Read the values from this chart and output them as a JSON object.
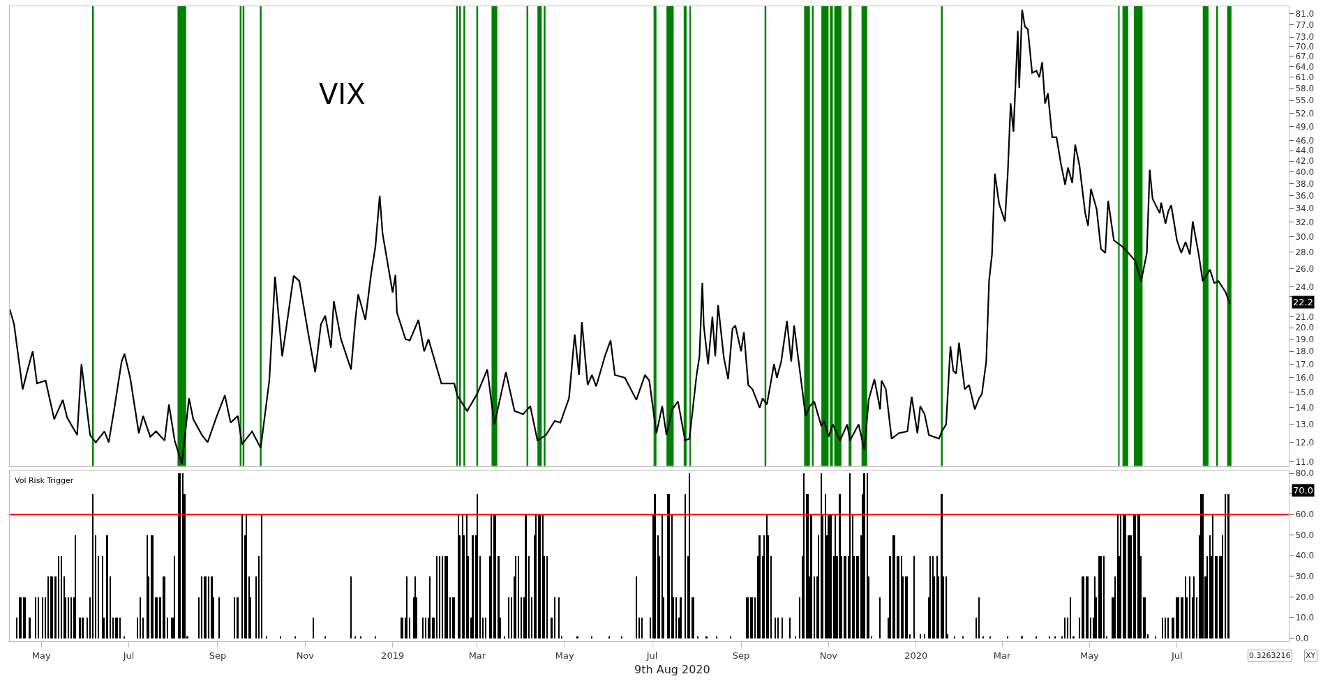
{
  "chart_data": [
    {
      "type": "line",
      "title": "VIX",
      "color": "#000000",
      "log": true,
      "tick_labels": "y",
      "xlim": [
        "2018-04-09",
        "2020-09-17"
      ],
      "ylim": [
        10.8,
        83.7
      ],
      "yticks": [
        {
          "value": 11,
          "label": "11.0"
        },
        {
          "value": 12,
          "label": "12.0"
        },
        {
          "value": 13,
          "label": "13.0"
        },
        {
          "value": 14,
          "label": "14.0"
        },
        {
          "value": 15,
          "label": "15.0"
        },
        {
          "value": 16,
          "label": "16.0"
        },
        {
          "value": 17,
          "label": "17.0"
        },
        {
          "value": 18,
          "label": "18.0"
        },
        {
          "value": 19,
          "label": "19.0"
        },
        {
          "value": 20,
          "label": "20.0"
        },
        {
          "value": 21,
          "label": "21.0"
        },
        {
          "value": 23,
          "label": null
        },
        {
          "value": 24,
          "label": "24.0"
        },
        {
          "value": 26,
          "label": "26.0"
        },
        {
          "value": 28,
          "label": "28.0"
        },
        {
          "value": 30,
          "label": "30.0"
        },
        {
          "value": 32,
          "label": "32.0"
        },
        {
          "value": 34,
          "label": "34.0"
        },
        {
          "value": 36,
          "label": "36.0"
        },
        {
          "value": 38,
          "label": "38.0"
        },
        {
          "value": 40,
          "label": "40.0"
        },
        {
          "value": 42,
          "label": "42.0"
        },
        {
          "value": 44,
          "label": "44.0"
        },
        {
          "value": 46,
          "label": "46.0"
        },
        {
          "value": 49,
          "label": "49.0"
        },
        {
          "value": 52,
          "label": "52.0"
        },
        {
          "value": 55,
          "label": "55.0"
        },
        {
          "value": 58,
          "label": "58.0"
        },
        {
          "value": 61,
          "label": "61.0"
        },
        {
          "value": 64,
          "label": "64.0"
        },
        {
          "value": 67,
          "label": "67.0"
        },
        {
          "value": 70,
          "label": "70.0"
        },
        {
          "value": 73,
          "label": "73.0"
        },
        {
          "value": 77,
          "label": "77.0"
        },
        {
          "value": 81,
          "label": "81.0"
        }
      ],
      "x": [
        "2018-04-09",
        "2018-04-12",
        "2018-04-18",
        "2018-04-22",
        "2018-04-25",
        "2018-04-28",
        "2018-05-04",
        "2018-05-10",
        "2018-05-16",
        "2018-05-19",
        "2018-05-26",
        "2018-05-29",
        "2018-06-04",
        "2018-06-08",
        "2018-06-14",
        "2018-06-17",
        "2018-06-21",
        "2018-06-26",
        "2018-06-28",
        "2018-07-02",
        "2018-07-08",
        "2018-07-11",
        "2018-07-16",
        "2018-07-20",
        "2018-07-26",
        "2018-07-29",
        "2018-08-02",
        "2018-08-07",
        "2018-08-12",
        "2018-08-15",
        "2018-08-21",
        "2018-08-25",
        "2018-08-31",
        "2018-09-06",
        "2018-09-10",
        "2018-09-15",
        "2018-09-18",
        "2018-09-25",
        "2018-10-01",
        "2018-10-07",
        "2018-10-11",
        "2018-10-16",
        "2018-10-24",
        "2018-10-28",
        "2018-11-03",
        "2018-11-08",
        "2018-11-12",
        "2018-11-15",
        "2018-11-19",
        "2018-11-21",
        "2018-11-26",
        "2018-12-03",
        "2018-12-06",
        "2018-12-08",
        "2018-12-13",
        "2018-12-17",
        "2018-12-20",
        "2018-12-23",
        "2018-12-25",
        "2019-01-01",
        "2019-01-03",
        "2019-01-04",
        "2019-01-10",
        "2019-01-13",
        "2019-01-19",
        "2019-01-23",
        "2019-01-26",
        "2019-02-04",
        "2019-02-13",
        "2019-02-15",
        "2019-02-22",
        "2019-03-01",
        "2019-03-08",
        "2019-03-13",
        "2019-03-21",
        "2019-03-27",
        "2019-04-02",
        "2019-04-07",
        "2019-04-12",
        "2019-04-18",
        "2019-04-24",
        "2019-04-28",
        "2019-05-04",
        "2019-05-08",
        "2019-05-11",
        "2019-05-13",
        "2019-05-17",
        "2019-05-20",
        "2019-05-23",
        "2019-05-29",
        "2019-06-02",
        "2019-06-05",
        "2019-06-12",
        "2019-06-20",
        "2019-06-26",
        "2019-06-29",
        "2019-07-04",
        "2019-07-08",
        "2019-07-11",
        "2019-07-15",
        "2019-07-19",
        "2019-07-24",
        "2019-07-27",
        "2019-08-01",
        "2019-08-03",
        "2019-08-05",
        "2019-08-06",
        "2019-08-09",
        "2019-08-12",
        "2019-08-14",
        "2019-08-16",
        "2019-08-20",
        "2019-08-23",
        "2019-08-26",
        "2019-08-28",
        "2019-09-01",
        "2019-09-03",
        "2019-09-06",
        "2019-09-09",
        "2019-09-14",
        "2019-09-16",
        "2019-09-19",
        "2019-09-24",
        "2019-09-26",
        "2019-09-29",
        "2019-10-03",
        "2019-10-06",
        "2019-10-08",
        "2019-10-12",
        "2019-10-16",
        "2019-10-19",
        "2019-10-22",
        "2019-10-27",
        "2019-10-29",
        "2019-11-01",
        "2019-11-04",
        "2019-11-09",
        "2019-11-14",
        "2019-11-16",
        "2019-11-22",
        "2019-11-26",
        "2019-11-29",
        "2019-12-03",
        "2019-12-07",
        "2019-12-08",
        "2019-12-11",
        "2019-12-15",
        "2019-12-20",
        "2019-12-26",
        "2019-12-29",
        "2020-01-02",
        "2020-01-04",
        "2020-01-07",
        "2020-01-10",
        "2020-01-17",
        "2020-01-19",
        "2020-01-22",
        "2020-01-25",
        "2020-01-27",
        "2020-01-29",
        "2020-01-31",
        "2020-02-04",
        "2020-02-07",
        "2020-02-11",
        "2020-02-14",
        "2020-02-16",
        "2020-02-19",
        "2020-02-21",
        "2020-02-23",
        "2020-02-25",
        "2020-02-28",
        "2020-03-03",
        "2020-03-05",
        "2020-03-07",
        "2020-03-09",
        "2020-03-12",
        "2020-03-13",
        "2020-03-15",
        "2020-03-17",
        "2020-03-19",
        "2020-03-22",
        "2020-03-25",
        "2020-03-27",
        "2020-03-29",
        "2020-03-31",
        "2020-04-02",
        "2020-04-05",
        "2020-04-08",
        "2020-04-11",
        "2020-04-14",
        "2020-04-16",
        "2020-04-19",
        "2020-04-21",
        "2020-04-24",
        "2020-04-28",
        "2020-04-30",
        "2020-05-02",
        "2020-05-06",
        "2020-05-09",
        "2020-05-12",
        "2020-05-14",
        "2020-05-18",
        "2020-05-24",
        "2020-05-28",
        "2020-06-02",
        "2020-06-06",
        "2020-06-10",
        "2020-06-12",
        "2020-06-14",
        "2020-06-19",
        "2020-06-20",
        "2020-06-23",
        "2020-06-25",
        "2020-06-27",
        "2020-07-01",
        "2020-07-04",
        "2020-07-07",
        "2020-07-10",
        "2020-07-12",
        "2020-07-16",
        "2020-07-19",
        "2020-07-24",
        "2020-07-27",
        "2020-07-30",
        "2020-08-04",
        "2020-08-07"
      ],
      "values": [
        21.7,
        20.3,
        15.2,
        16.8,
        18.0,
        15.6,
        15.8,
        13.3,
        14.5,
        13.4,
        12.4,
        17.0,
        12.4,
        12.0,
        12.6,
        12.0,
        14.0,
        17.2,
        17.8,
        16.0,
        12.5,
        13.5,
        12.3,
        12.6,
        12.1,
        14.2,
        12.1,
        10.9,
        14.6,
        13.3,
        12.4,
        12.0,
        13.4,
        14.8,
        13.1,
        13.5,
        11.9,
        12.6,
        11.7,
        15.8,
        25.1,
        17.6,
        25.2,
        24.6,
        19.6,
        16.4,
        20.3,
        21.1,
        18.3,
        22.5,
        19.0,
        16.6,
        20.7,
        23.2,
        20.7,
        25.4,
        28.7,
        36.0,
        30.4,
        23.4,
        25.3,
        21.4,
        19.0,
        18.9,
        20.7,
        18.0,
        19.0,
        15.6,
        15.6,
        14.8,
        13.8,
        14.9,
        16.6,
        13.0,
        16.4,
        13.8,
        13.6,
        14.1,
        12.1,
        12.4,
        13.2,
        13.1,
        14.6,
        19.4,
        16.2,
        20.5,
        15.5,
        16.2,
        15.4,
        17.6,
        18.9,
        16.2,
        16.0,
        14.5,
        16.2,
        15.8,
        12.5,
        14.1,
        12.4,
        13.9,
        14.4,
        12.1,
        12.2,
        16.2,
        17.6,
        24.4,
        20.2,
        17.0,
        21.0,
        17.6,
        22.1,
        17.5,
        15.9,
        19.9,
        20.2,
        18.0,
        19.6,
        15.5,
        15.2,
        14.0,
        14.6,
        14.2,
        17.0,
        16.0,
        17.2,
        20.6,
        17.2,
        20.2,
        16.5,
        13.5,
        14.1,
        14.4,
        12.9,
        13.2,
        12.3,
        13.0,
        12.1,
        13.0,
        12.1,
        13.0,
        11.6,
        14.5,
        15.9,
        13.9,
        15.8,
        15.2,
        12.2,
        12.5,
        12.6,
        14.7,
        12.5,
        14.1,
        13.6,
        12.4,
        12.2,
        12.6,
        13.0,
        18.4,
        16.5,
        16.3,
        18.7,
        15.2,
        15.5,
        13.9,
        14.6,
        14.9,
        17.2,
        24.7,
        27.7,
        39.7,
        34.7,
        32.1,
        39.7,
        54.3,
        47.9,
        75.0,
        58.2,
        82.4,
        76.4,
        75.6,
        62.2,
        62.8,
        61.0,
        65.2,
        54.3,
        56.8,
        46.7,
        46.7,
        41.6,
        37.8,
        40.8,
        38.1,
        45.2,
        41.2,
        33.3,
        31.5,
        37.1,
        33.9,
        28.4,
        27.9,
        35.2,
        29.5,
        28.7,
        27.9,
        26.9,
        24.6,
        27.9,
        40.4,
        35.5,
        33.3,
        34.9,
        31.8,
        33.6,
        34.5,
        29.5,
        27.9,
        29.3,
        27.7,
        32.1,
        27.9,
        24.6,
        25.9,
        24.4,
        24.6,
        23.4,
        22.2
      ],
      "ref_lines": [
        {
          "axis": "x",
          "value": "2018-06-06",
          "color": "#008000"
        },
        {
          "axis": "x",
          "value": "2018-09-17",
          "color": "#008000"
        },
        {
          "axis": "x",
          "value": "2018-09-19",
          "color": "#008000"
        },
        {
          "axis": "x",
          "value": "2018-10-01",
          "color": "#008000"
        },
        {
          "axis": "x",
          "value": "2019-02-15",
          "color": "#008000"
        },
        {
          "axis": "x",
          "value": "2019-02-17",
          "color": "#008000"
        },
        {
          "axis": "x",
          "value": "2019-02-20",
          "color": "#008000"
        },
        {
          "axis": "x",
          "value": "2019-03-01",
          "color": "#008000"
        },
        {
          "axis": "x",
          "value": "2019-04-05",
          "color": "#008000"
        },
        {
          "axis": "x",
          "value": "2019-04-17",
          "color": "#008000"
        },
        {
          "axis": "x",
          "value": "2019-09-18",
          "color": "#008000"
        },
        {
          "axis": "x",
          "value": "2019-10-21",
          "color": "#008000"
        },
        {
          "axis": "x",
          "value": "2020-01-19",
          "color": "#008000"
        },
        {
          "axis": "x",
          "value": "2020-07-29",
          "color": "#008000"
        }
      ],
      "bands": [
        {
          "axis": "x",
          "from": "2018-08-04",
          "to": "2018-08-10",
          "color": "#008000"
        },
        {
          "axis": "x",
          "from": "2019-03-11",
          "to": "2019-03-15",
          "color": "#008000"
        },
        {
          "axis": "x",
          "from": "2019-04-12",
          "to": "2019-04-15",
          "color": "#008000"
        },
        {
          "axis": "x",
          "from": "2019-07-02",
          "to": "2019-07-04",
          "color": "#008000"
        },
        {
          "axis": "x",
          "from": "2019-07-11",
          "to": "2019-07-16",
          "color": "#008000"
        },
        {
          "axis": "x",
          "from": "2019-07-23",
          "to": "2019-07-25",
          "color": "#008000"
        },
        {
          "axis": "x",
          "from": "2019-07-27",
          "to": "2019-07-28",
          "color": "#008000"
        },
        {
          "axis": "x",
          "from": "2019-10-15",
          "to": "2019-10-19",
          "color": "#008000"
        },
        {
          "axis": "x",
          "from": "2019-10-27",
          "to": "2019-11-01",
          "color": "#008000"
        },
        {
          "axis": "x",
          "from": "2019-11-02",
          "to": "2019-11-04",
          "color": "#008000"
        },
        {
          "axis": "x",
          "from": "2019-11-05",
          "to": "2019-11-10",
          "color": "#008000"
        },
        {
          "axis": "x",
          "from": "2019-11-15",
          "to": "2019-11-17",
          "color": "#008000"
        },
        {
          "axis": "x",
          "from": "2019-11-24",
          "to": "2019-11-28",
          "color": "#008000"
        },
        {
          "axis": "x",
          "from": "2020-05-21",
          "to": "2020-05-22",
          "color": "#008000"
        },
        {
          "axis": "x",
          "from": "2020-05-24",
          "to": "2020-05-28",
          "color": "#008000"
        },
        {
          "axis": "x",
          "from": "2020-06-01",
          "to": "2020-06-07",
          "color": "#008000"
        },
        {
          "axis": "x",
          "from": "2020-07-19",
          "to": "2020-07-23",
          "color": "#008000"
        },
        {
          "axis": "x",
          "from": "2020-08-05",
          "to": "2020-08-08",
          "color": "#008000"
        }
      ],
      "annotations": [
        "22.2"
      ]
    },
    {
      "type": "bar",
      "title": "Vol Risk Trigger",
      "color": "#000000",
      "xlim": [
        "2018-04-09",
        "2020-09-17"
      ],
      "ylim": [
        -1.5,
        81.5
      ],
      "yticks": [
        {
          "value": 0,
          "label": "0.0"
        },
        {
          "value": 10,
          "label": "10.0"
        },
        {
          "value": 20,
          "label": "20.0"
        },
        {
          "value": 30,
          "label": "30.0"
        },
        {
          "value": 40,
          "label": "40.0"
        },
        {
          "value": 50,
          "label": "50.0"
        },
        {
          "value": 60,
          "label": "60.0"
        },
        {
          "value": 70,
          "label": null
        },
        {
          "value": 80,
          "label": "80.0"
        }
      ],
      "xticks": [
        {
          "value": "2018-05-01",
          "label": "May"
        },
        {
          "value": "2018-07-01",
          "label": "Jul"
        },
        {
          "value": "2018-09-01",
          "label": "Sep"
        },
        {
          "value": "2018-11-01",
          "label": "Nov"
        },
        {
          "value": "2019-01-01",
          "label": "2019"
        },
        {
          "value": "2019-03-01",
          "label": "Mar"
        },
        {
          "value": "2019-05-01",
          "label": "May"
        },
        {
          "value": "2019-07-01",
          "label": "Jul"
        },
        {
          "value": "2019-09-01",
          "label": "Sep"
        },
        {
          "value": "2019-11-01",
          "label": "Nov"
        },
        {
          "value": "2020-01-01",
          "label": "2020"
        },
        {
          "value": "2020-03-01",
          "label": "Mar"
        },
        {
          "value": "2020-05-01",
          "label": "May"
        },
        {
          "value": "2020-07-01",
          "label": "Jul"
        }
      ],
      "x": [
        "2018-04-14",
        "2018-04-16",
        "2018-04-17",
        "2018-04-19",
        "2018-04-20",
        "2018-04-23",
        "2018-04-27",
        "2018-04-29",
        "2018-05-02",
        "2018-05-04",
        "2018-05-06",
        "2018-05-08",
        "2018-05-09",
        "2018-05-11",
        "2018-05-13",
        "2018-05-15",
        "2018-05-17",
        "2018-05-18",
        "2018-05-20",
        "2018-05-22",
        "2018-05-24",
        "2018-05-25",
        "2018-05-28",
        "2018-05-30",
        "2018-06-02",
        "2018-06-04",
        "2018-06-06",
        "2018-06-08",
        "2018-06-10",
        "2018-06-13",
        "2018-06-14",
        "2018-06-16",
        "2018-06-18",
        "2018-06-20",
        "2018-06-22",
        "2018-06-23",
        "2018-06-25",
        "2018-06-28",
        "2018-07-07",
        "2018-07-09",
        "2018-07-11",
        "2018-07-14",
        "2018-07-15",
        "2018-07-17",
        "2018-07-18",
        "2018-07-20",
        "2018-07-21",
        "2018-07-23",
        "2018-07-25",
        "2018-07-26",
        "2018-07-28",
        "2018-07-31",
        "2018-08-01",
        "2018-08-02",
        "2018-08-05",
        "2018-08-06",
        "2018-08-08",
        "2018-08-09",
        "2018-08-11",
        "2018-08-19",
        "2018-08-21",
        "2018-08-23",
        "2018-08-24",
        "2018-08-26",
        "2018-08-28",
        "2018-08-29",
        "2018-09-02",
        "2018-09-13",
        "2018-09-15",
        "2018-09-18",
        "2018-09-20",
        "2018-09-21",
        "2018-09-23",
        "2018-09-24",
        "2018-09-28",
        "2018-09-30",
        "2018-10-02",
        "2018-10-05",
        "2018-10-15",
        "2018-10-25",
        "2018-11-07",
        "2018-11-15",
        "2018-12-03",
        "2018-12-06",
        "2018-12-10",
        "2018-12-20",
        "2019-01-07",
        "2019-01-08",
        "2019-01-10",
        "2019-01-11",
        "2019-01-13",
        "2019-01-16",
        "2019-01-17",
        "2019-01-18",
        "2019-01-22",
        "2019-01-24",
        "2019-01-26",
        "2019-01-27",
        "2019-01-29",
        "2019-01-30",
        "2019-02-01",
        "2019-02-03",
        "2019-02-05",
        "2019-02-07",
        "2019-02-08",
        "2019-02-10",
        "2019-02-12",
        "2019-02-13",
        "2019-02-16",
        "2019-02-17",
        "2019-02-19",
        "2019-02-20",
        "2019-02-22",
        "2019-02-23",
        "2019-02-25",
        "2019-02-26",
        "2019-02-28",
        "2019-03-01",
        "2019-03-03",
        "2019-03-05",
        "2019-03-07",
        "2019-03-10",
        "2019-03-11",
        "2019-03-13",
        "2019-03-14",
        "2019-03-16",
        "2019-03-17",
        "2019-03-20",
        "2019-03-23",
        "2019-03-25",
        "2019-03-27",
        "2019-03-28",
        "2019-03-30",
        "2019-04-01",
        "2019-04-03",
        "2019-04-04",
        "2019-04-06",
        "2019-04-08",
        "2019-04-10",
        "2019-04-11",
        "2019-04-13",
        "2019-04-14",
        "2019-04-16",
        "2019-04-17",
        "2019-04-19",
        "2019-04-22",
        "2019-04-24",
        "2019-04-27",
        "2019-04-29",
        "2019-05-10",
        "2019-05-20",
        "2019-06-01",
        "2019-06-10",
        "2019-06-20",
        "2019-06-22",
        "2019-06-24",
        "2019-06-30",
        "2019-07-02",
        "2019-07-03",
        "2019-07-05",
        "2019-07-06",
        "2019-07-08",
        "2019-07-09",
        "2019-07-12",
        "2019-07-13",
        "2019-07-15",
        "2019-07-16",
        "2019-07-18",
        "2019-07-20",
        "2019-07-21",
        "2019-07-24",
        "2019-07-26",
        "2019-07-27",
        "2019-07-29",
        "2019-07-30",
        "2019-08-02",
        "2019-08-08",
        "2019-08-15",
        "2019-08-25",
        "2019-09-05",
        "2019-09-06",
        "2019-09-08",
        "2019-09-09",
        "2019-09-11",
        "2019-09-13",
        "2019-09-14",
        "2019-09-16",
        "2019-09-17",
        "2019-09-19",
        "2019-09-20",
        "2019-09-22",
        "2019-09-25",
        "2019-09-27",
        "2019-09-30",
        "2019-10-05",
        "2019-10-09",
        "2019-10-12",
        "2019-10-14",
        "2019-10-15",
        "2019-10-17",
        "2019-10-18",
        "2019-10-19",
        "2019-10-20",
        "2019-10-22",
        "2019-10-24",
        "2019-10-25",
        "2019-10-27",
        "2019-10-28",
        "2019-10-30",
        "2019-10-31",
        "2019-11-01",
        "2019-11-02",
        "2019-11-03",
        "2019-11-05",
        "2019-11-06",
        "2019-11-07",
        "2019-11-09",
        "2019-11-10",
        "2019-11-12",
        "2019-11-13",
        "2019-11-15",
        "2019-11-16",
        "2019-11-18",
        "2019-11-19",
        "2019-11-21",
        "2019-11-22",
        "2019-11-24",
        "2019-11-25",
        "2019-11-26",
        "2019-11-28",
        "2019-11-29",
        "2019-12-01",
        "2019-12-07",
        "2019-12-13",
        "2019-12-14",
        "2019-12-16",
        "2019-12-17",
        "2019-12-19",
        "2019-12-20",
        "2019-12-22",
        "2019-12-23",
        "2019-12-25",
        "2019-12-26",
        "2019-12-28",
        "2019-12-31",
        "2020-01-04",
        "2020-01-07",
        "2020-01-10",
        "2020-01-11",
        "2020-01-13",
        "2020-01-14",
        "2020-01-16",
        "2020-01-17",
        "2020-01-19",
        "2020-01-20",
        "2020-01-22",
        "2020-01-23",
        "2020-01-28",
        "2020-02-03",
        "2020-02-12",
        "2020-02-14",
        "2020-02-17",
        "2020-02-22",
        "2020-03-05",
        "2020-03-15",
        "2020-03-25",
        "2020-04-03",
        "2020-04-07",
        "2020-04-12",
        "2020-04-14",
        "2020-04-16",
        "2020-04-18",
        "2020-04-20",
        "2020-04-24",
        "2020-04-26",
        "2020-04-27",
        "2020-04-29",
        "2020-04-30",
        "2020-05-02",
        "2020-05-04",
        "2020-05-05",
        "2020-05-06",
        "2020-05-08",
        "2020-05-09",
        "2020-05-11",
        "2020-05-13",
        "2020-05-17",
        "2020-05-18",
        "2020-05-19",
        "2020-05-21",
        "2020-05-22",
        "2020-05-23",
        "2020-05-25",
        "2020-05-26",
        "2020-05-28",
        "2020-05-29",
        "2020-05-30",
        "2020-06-01",
        "2020-06-02",
        "2020-06-04",
        "2020-06-05",
        "2020-06-06",
        "2020-06-08",
        "2020-06-09",
        "2020-06-11",
        "2020-06-16",
        "2020-06-21",
        "2020-06-23",
        "2020-06-25",
        "2020-06-28",
        "2020-06-29",
        "2020-07-01",
        "2020-07-02",
        "2020-07-04",
        "2020-07-05",
        "2020-07-07",
        "2020-07-08",
        "2020-07-10",
        "2020-07-12",
        "2020-07-13",
        "2020-07-15",
        "2020-07-17",
        "2020-07-18",
        "2020-07-19",
        "2020-07-21",
        "2020-07-22",
        "2020-07-24",
        "2020-07-25",
        "2020-07-26",
        "2020-07-28",
        "2020-07-29",
        "2020-07-31",
        "2020-08-01",
        "2020-08-02",
        "2020-08-04",
        "2020-08-06"
      ],
      "values": [
        10,
        20,
        20,
        20,
        20,
        10,
        20,
        20,
        20,
        20,
        30,
        30,
        30,
        30,
        40,
        40,
        30,
        20,
        20,
        20,
        20,
        50,
        10,
        10,
        10,
        20,
        70,
        50,
        40,
        40,
        10,
        50,
        30,
        10,
        10,
        10,
        10,
        1,
        10,
        20,
        10,
        50,
        30,
        50,
        50,
        20,
        20,
        20,
        30,
        30,
        10,
        10,
        10,
        40,
        80,
        80,
        80,
        70,
        1,
        20,
        30,
        30,
        30,
        30,
        30,
        20,
        20,
        20,
        20,
        60,
        50,
        60,
        30,
        20,
        30,
        40,
        60,
        1,
        1,
        1,
        10,
        1,
        30,
        1,
        1,
        1,
        10,
        10,
        10,
        30,
        10,
        20,
        30,
        20,
        10,
        10,
        10,
        30,
        10,
        10,
        40,
        40,
        40,
        40,
        40,
        20,
        20,
        20,
        60,
        50,
        60,
        50,
        60,
        40,
        10,
        50,
        50,
        70,
        40,
        10,
        10,
        40,
        60,
        60,
        60,
        40,
        10,
        1,
        20,
        20,
        30,
        40,
        40,
        20,
        20,
        60,
        40,
        20,
        50,
        60,
        60,
        60,
        60,
        40,
        40,
        10,
        20,
        20,
        1,
        1,
        1,
        1,
        1,
        30,
        10,
        10,
        10,
        60,
        70,
        50,
        40,
        60,
        20,
        70,
        70,
        60,
        20,
        20,
        10,
        20,
        70,
        40,
        80,
        20,
        20,
        1,
        1,
        1,
        1,
        20,
        20,
        20,
        20,
        20,
        40,
        50,
        40,
        50,
        60,
        50,
        40,
        10,
        10,
        10,
        10,
        1,
        20,
        40,
        80,
        70,
        70,
        30,
        60,
        30,
        30,
        50,
        80,
        60,
        70,
        50,
        60,
        60,
        60,
        40,
        60,
        40,
        70,
        40,
        40,
        40,
        40,
        80,
        60,
        40,
        40,
        40,
        50,
        70,
        80,
        80,
        30,
        1,
        20,
        10,
        40,
        50,
        50,
        40,
        40,
        40,
        30,
        30,
        30,
        2,
        40,
        2,
        2,
        20,
        40,
        40,
        30,
        40,
        30,
        70,
        30,
        30,
        2,
        1,
        1,
        10,
        20,
        1,
        1,
        1,
        1,
        1,
        1,
        1,
        1,
        10,
        10,
        20,
        1,
        10,
        30,
        30,
        30,
        30,
        10,
        10,
        30,
        20,
        40,
        40,
        40,
        1,
        20,
        20,
        30,
        60,
        40,
        60,
        60,
        60,
        50,
        50,
        50,
        60,
        60,
        60,
        60,
        40,
        20,
        20,
        2,
        1,
        10,
        10,
        10,
        10,
        10,
        20,
        20,
        20,
        20,
        30,
        20,
        30,
        20,
        30,
        20,
        50,
        70,
        70,
        30,
        40,
        50,
        40,
        60,
        40,
        40,
        40,
        40,
        50,
        70,
        70
      ],
      "ref_lines": [
        {
          "axis": "y",
          "value": 60,
          "color": "#ff0000"
        }
      ],
      "annotations": [
        "9th Aug 2020",
        "70.0",
        "0.3263216",
        "XY"
      ]
    }
  ]
}
